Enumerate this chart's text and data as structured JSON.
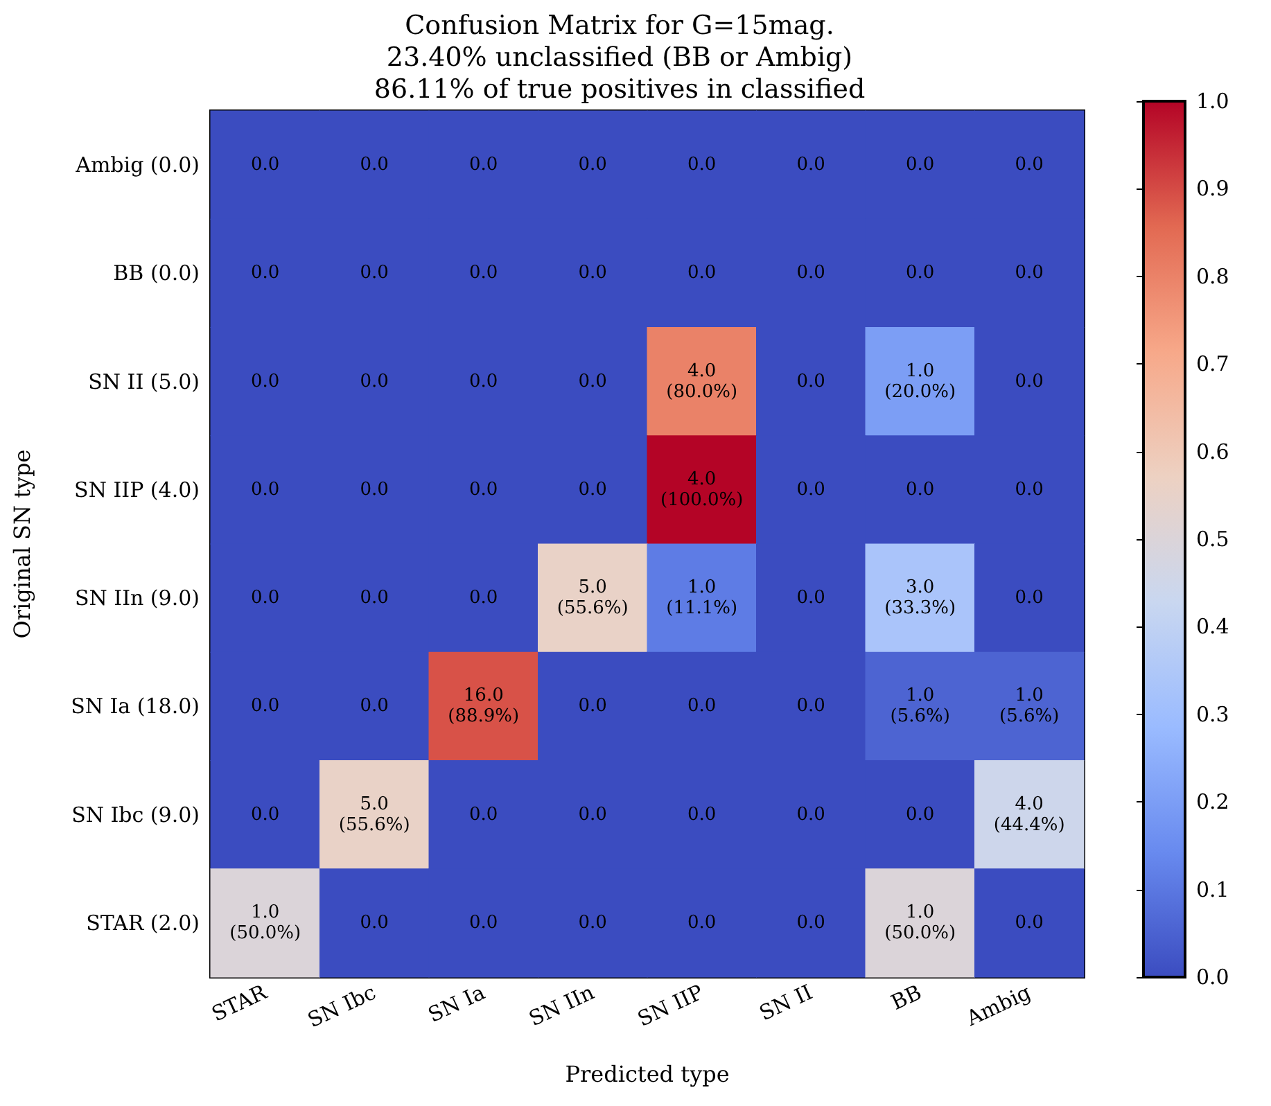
{
  "chart_data": {
    "type": "heatmap",
    "title": "Confusion Matrix for G=15mag.\n23.40% unclassified (BB or Ambig)\n86.11% of true positives in classified",
    "xlabel": "Predicted type",
    "ylabel": "Original SN type",
    "categories": [
      "STAR",
      "SN Ibc",
      "SN Ia",
      "SN IIn",
      "SN IIP",
      "SN II",
      "BB",
      "Ambig"
    ],
    "y_categories": [
      "Ambig (0.0)",
      "BB (0.0)",
      "SN II (5.0)",
      "SN IIP (4.0)",
      "SN IIn (9.0)",
      "SN Ia (18.0)",
      "SN Ibc (9.0)",
      "STAR (2.0)"
    ],
    "cells": [
      [
        0,
        0,
        0,
        0,
        0,
        0,
        0,
        0
      ],
      [
        0,
        0,
        0,
        0,
        0,
        0,
        0,
        0
      ],
      [
        0,
        0,
        0,
        0,
        0.8,
        0,
        0.2,
        0
      ],
      [
        0,
        0,
        0,
        0,
        1.0,
        0,
        0,
        0
      ],
      [
        0,
        0,
        0,
        0.556,
        0.111,
        0,
        0.333,
        0
      ],
      [
        0,
        0,
        0.889,
        0,
        0,
        0,
        0.056,
        0.056
      ],
      [
        0,
        0.556,
        0,
        0,
        0,
        0,
        0,
        0.444
      ],
      [
        0.5,
        0,
        0,
        0,
        0,
        0,
        0.5,
        0
      ]
    ],
    "cell_labels": [
      [
        "0.0",
        "0.0",
        "0.0",
        "0.0",
        "0.0",
        "0.0",
        "0.0",
        "0.0"
      ],
      [
        "0.0",
        "0.0",
        "0.0",
        "0.0",
        "0.0",
        "0.0",
        "0.0",
        "0.0"
      ],
      [
        "0.0",
        "0.0",
        "0.0",
        "0.0",
        "4.0\n(80.0%)",
        "0.0",
        "1.0\n(20.0%)",
        "0.0"
      ],
      [
        "0.0",
        "0.0",
        "0.0",
        "0.0",
        "4.0\n(100.0%)",
        "0.0",
        "0.0",
        "0.0"
      ],
      [
        "0.0",
        "0.0",
        "0.0",
        "5.0\n(55.6%)",
        "1.0\n(11.1%)",
        "0.0",
        "3.0\n(33.3%)",
        "0.0"
      ],
      [
        "0.0",
        "0.0",
        "16.0\n(88.9%)",
        "0.0",
        "0.0",
        "0.0",
        "1.0\n(5.6%)",
        "1.0\n(5.6%)"
      ],
      [
        "0.0",
        "5.0\n(55.6%)",
        "0.0",
        "0.0",
        "0.0",
        "0.0",
        "0.0",
        "4.0\n(44.4%)"
      ],
      [
        "1.0\n(50.0%)",
        "0.0",
        "0.0",
        "0.0",
        "0.0",
        "0.0",
        "1.0\n(50.0%)",
        "0.0"
      ]
    ],
    "clim": [
      0,
      1
    ],
    "cticks": [
      {
        "value": 0,
        "label": "0.0"
      },
      {
        "value": 0.1,
        "label": "0.1"
      },
      {
        "value": 0.2,
        "label": "0.2"
      },
      {
        "value": 0.3,
        "label": "0.3"
      },
      {
        "value": 0.4,
        "label": "0.4"
      },
      {
        "value": 0.5,
        "label": "0.5"
      },
      {
        "value": 0.6,
        "label": "0.6"
      },
      {
        "value": 0.7,
        "label": "0.7"
      },
      {
        "value": 0.8,
        "label": "0.8"
      },
      {
        "value": 0.9,
        "label": "0.9"
      },
      {
        "value": 1,
        "label": "1.0"
      }
    ]
  }
}
